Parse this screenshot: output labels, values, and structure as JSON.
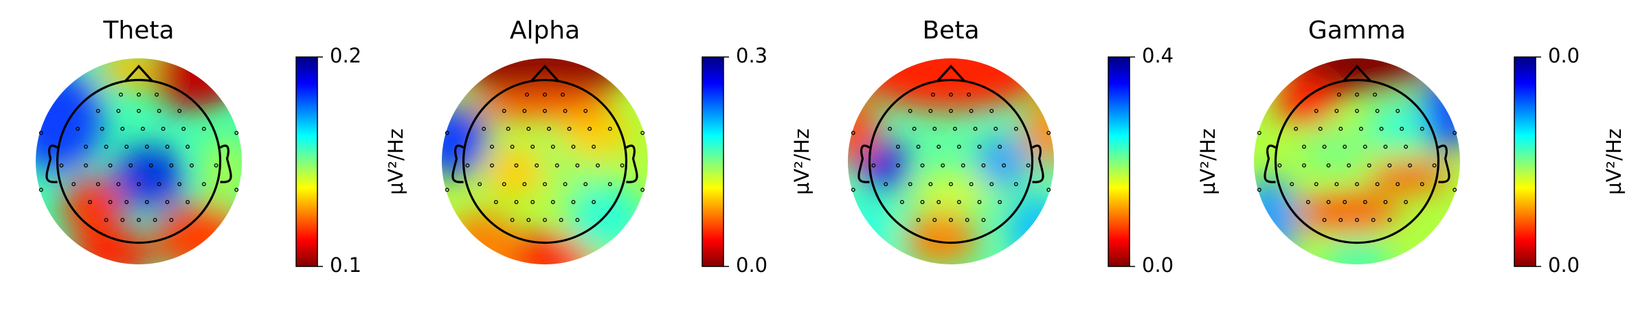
{
  "chart_data": [
    {
      "type": "topomap",
      "title": "Theta",
      "colorbar_label": "µV²/Hz",
      "colormap": "jet_r",
      "ylim": [
        0.1,
        0.2
      ],
      "yticks": [
        0.1,
        0.2
      ]
    },
    {
      "type": "topomap",
      "title": "Alpha",
      "colorbar_label": "µV²/Hz",
      "colormap": "jet_r",
      "ylim": [
        0,
        0.3
      ],
      "yticks": [
        {
          "value": 0,
          "label": "0.0"
        },
        0.3
      ]
    },
    {
      "type": "topomap",
      "title": "Beta",
      "colorbar_label": "µV²/Hz",
      "colormap": "jet_r",
      "ylim": [
        0,
        0.4
      ],
      "yticks": [
        {
          "value": 0,
          "label": "0.0"
        },
        0.4
      ]
    },
    {
      "type": "topomap",
      "title": "Gamma",
      "colorbar_label": "µV²/Hz",
      "colormap": "jet_r",
      "ylim": [
        0.01,
        0.04
      ],
      "yticks": [
        {
          "value": 0.01,
          "label": "0.0"
        },
        {
          "value": 0.04,
          "label": "0.0"
        }
      ]
    }
  ]
}
